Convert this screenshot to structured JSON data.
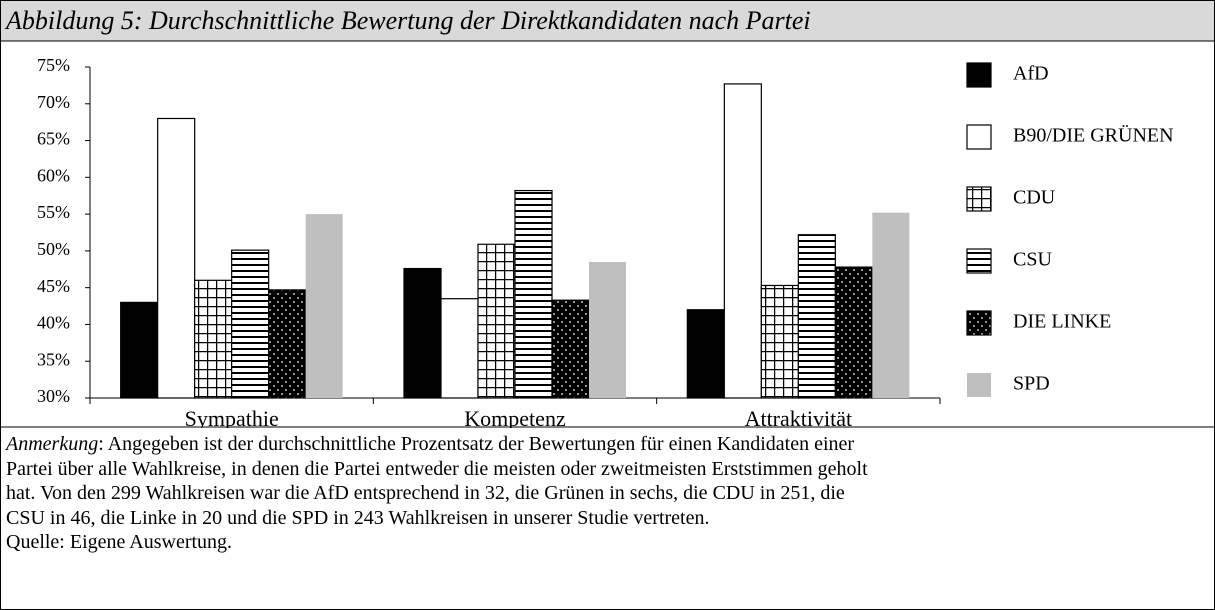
{
  "chart_data": {
    "type": "bar",
    "title": "Abbildung 5: Durchschnittliche Bewertung der Direktkandidaten nach Partei",
    "categories": [
      "Sympathie",
      "Kompetenz",
      "Attraktivität"
    ],
    "series": [
      {
        "name": "AfD",
        "color": "#000000",
        "values": [
          43,
          47.6,
          42
        ]
      },
      {
        "name": "B90/DIE GRÜNEN",
        "color": "#ffffff",
        "values": [
          68,
          43.5,
          72.7
        ]
      },
      {
        "name": "CDU",
        "color": "#ffffff",
        "pattern": "grid",
        "values": [
          46,
          50.9,
          45.3
        ]
      },
      {
        "name": "CSU",
        "color": "#ffffff",
        "pattern": "hlines",
        "values": [
          50.1,
          58.2,
          52.2
        ]
      },
      {
        "name": "DIE LINKE",
        "color": "#000000",
        "pattern": "dots",
        "values": [
          44.7,
          43.3,
          47.8
        ]
      },
      {
        "name": "SPD",
        "color": "#bfbfbf",
        "values": [
          55,
          48.5,
          55.2
        ]
      }
    ],
    "ylim": [
      30,
      75
    ],
    "yticks": [
      {
        "value": 30,
        "label": "30%"
      },
      {
        "value": 35,
        "label": "35%"
      },
      {
        "value": 40,
        "label": "40%"
      },
      {
        "value": 45,
        "label": "45%"
      },
      {
        "value": 50,
        "label": "50%"
      },
      {
        "value": 55,
        "label": "55%"
      },
      {
        "value": 60,
        "label": "60%"
      },
      {
        "value": 65,
        "label": "65%"
      },
      {
        "value": 70,
        "label": "70%"
      },
      {
        "value": 75,
        "label": "75%"
      }
    ],
    "legend": "right"
  },
  "note": {
    "label": "Anmerkung",
    "lines": [
      ": Angegeben ist der durchschnittliche Prozentsatz der Bewertungen für einen Kandidaten einer",
      "Partei über alle Wahlkreise, in denen die Partei entweder die meisten oder zweitmeisten Erststimmen geholt",
      "hat. Von den 299 Wahlkreisen war die AfD entsprechend in 32, die Grünen in sechs, die CDU in 251, die",
      "CSU in 46, die Linke in 20 und die SPD in 243 Wahlkreisen in unserer Studie vertreten."
    ],
    "source": "Quelle: Eigene Auswertung."
  }
}
